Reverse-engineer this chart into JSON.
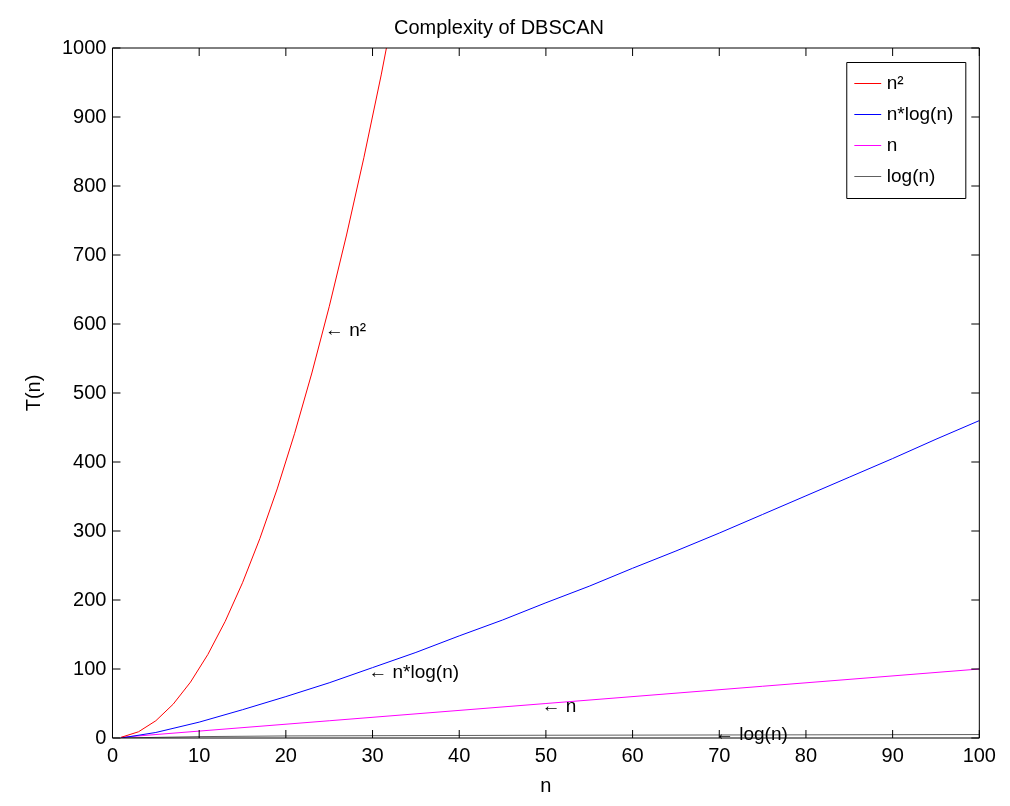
{
  "chart_data": {
    "type": "line",
    "title": "Complexity of DBSCAN",
    "xlabel": "n",
    "ylabel": "T(n)",
    "xlim": [
      0,
      100
    ],
    "ylim": [
      0,
      1000
    ],
    "xticks": [
      0,
      10,
      20,
      30,
      40,
      50,
      60,
      70,
      80,
      90,
      100
    ],
    "yticks": [
      0,
      100,
      200,
      300,
      400,
      500,
      600,
      700,
      800,
      900,
      1000
    ],
    "grid": false,
    "legend": "top right",
    "marker": "none",
    "line_style": "solid",
    "series": [
      {
        "name": "n²",
        "color": "#ff0000",
        "x": [
          1,
          3,
          5,
          7,
          9,
          11,
          13,
          15,
          17,
          19,
          21,
          23,
          25,
          27,
          29,
          31,
          31.6
        ],
        "values": [
          1,
          9,
          25,
          49,
          81,
          121,
          169,
          225,
          289,
          361,
          441,
          529,
          625,
          729,
          841,
          961,
          1000
        ]
      },
      {
        "name": "n*log(n)",
        "color": "#0000ff",
        "x": [
          1,
          5,
          10,
          15,
          20,
          25,
          30,
          35,
          40,
          45,
          50,
          55,
          60,
          65,
          70,
          75,
          80,
          85,
          90,
          95,
          100
        ],
        "values": [
          0,
          8,
          23,
          41,
          60,
          80,
          102,
          124,
          148,
          171,
          196,
          220,
          246,
          271,
          297,
          324,
          351,
          378,
          405,
          433,
          460
        ]
      },
      {
        "name": "n",
        "color": "#ff00ff",
        "x": [
          1,
          25,
          50,
          75,
          100
        ],
        "values": [
          1,
          25,
          50,
          75,
          100
        ]
      },
      {
        "name": "log(n)",
        "color": "#606060",
        "x": [
          1,
          10,
          20,
          50,
          100
        ],
        "values": [
          0,
          2,
          3,
          4,
          5
        ]
      }
    ],
    "annotations": [
      {
        "text": "← n²",
        "x": 24.5,
        "y": 590
      },
      {
        "text": "← n*log(n)",
        "x": 29.5,
        "y": 95
      },
      {
        "text": "← n",
        "x": 49.5,
        "y": 45
      },
      {
        "text": "← log(n)",
        "x": 69.5,
        "y": 4
      }
    ]
  }
}
